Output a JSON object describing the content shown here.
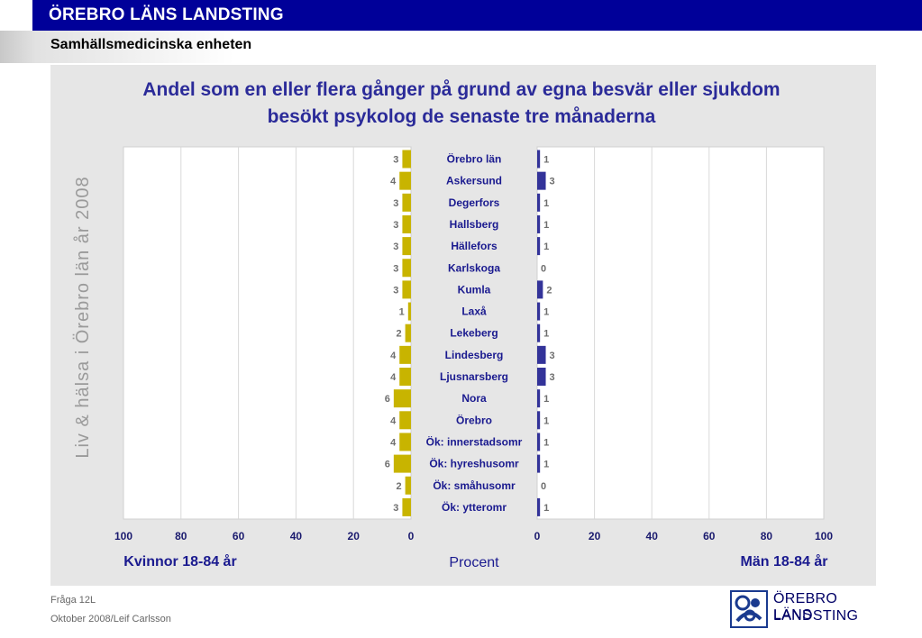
{
  "header": {
    "org": "ÖREBRO LÄNS LANDSTING",
    "unit": "Samhällsmedicinska enheten"
  },
  "side_text": "Liv & hälsa i Örebro län år 2008",
  "footer": {
    "question": "Fråga 12L",
    "date_author": "Oktober 2008/Leif Carlsson"
  },
  "logo": {
    "line1": "ÖREBRO LÄNS",
    "line2": "LANDSTING"
  },
  "colors": {
    "women": "#c8b400",
    "men": "#333399",
    "title": "#2b2b99",
    "header_bg": "#000099"
  },
  "chart_data": {
    "type": "bar",
    "title": "Andel som en eller flera gånger på grund av egna besvär eller sjukdom besökt psykolog de senaste tre månaderna",
    "title_lines": [
      "Andel som en eller flera gånger på grund av egna besvär eller sjukdom",
      "besökt psykolog de senaste tre månaderna"
    ],
    "categories": [
      "Örebro län",
      "Askersund",
      "Degerfors",
      "Hallsberg",
      "Hällefors",
      "Karlskoga",
      "Kumla",
      "Laxå",
      "Lekeberg",
      "Lindesberg",
      "Ljusnarsberg",
      "Nora",
      "Örebro",
      "Ök: innerstadsomr",
      "Ök: hyreshusomr",
      "Ök: småhusomr",
      "Ök: ytteromr"
    ],
    "series": [
      {
        "name": "Kvinnor 18-84 år",
        "values": [
          3,
          4,
          3,
          3,
          3,
          3,
          3,
          1,
          2,
          4,
          4,
          6,
          4,
          4,
          6,
          2,
          3
        ]
      },
      {
        "name": "Män 18-84 år",
        "values": [
          1,
          3,
          1,
          1,
          1,
          0,
          2,
          1,
          1,
          3,
          3,
          1,
          1,
          1,
          1,
          0,
          1
        ]
      }
    ],
    "left_xlabel": "Kvinnor 18-84 år",
    "right_xlabel": "Män 18-84 år",
    "center_xlabel": "Procent",
    "xlim": [
      0,
      100
    ],
    "ticks": [
      0,
      20,
      40,
      60,
      80,
      100
    ],
    "grid": true
  }
}
